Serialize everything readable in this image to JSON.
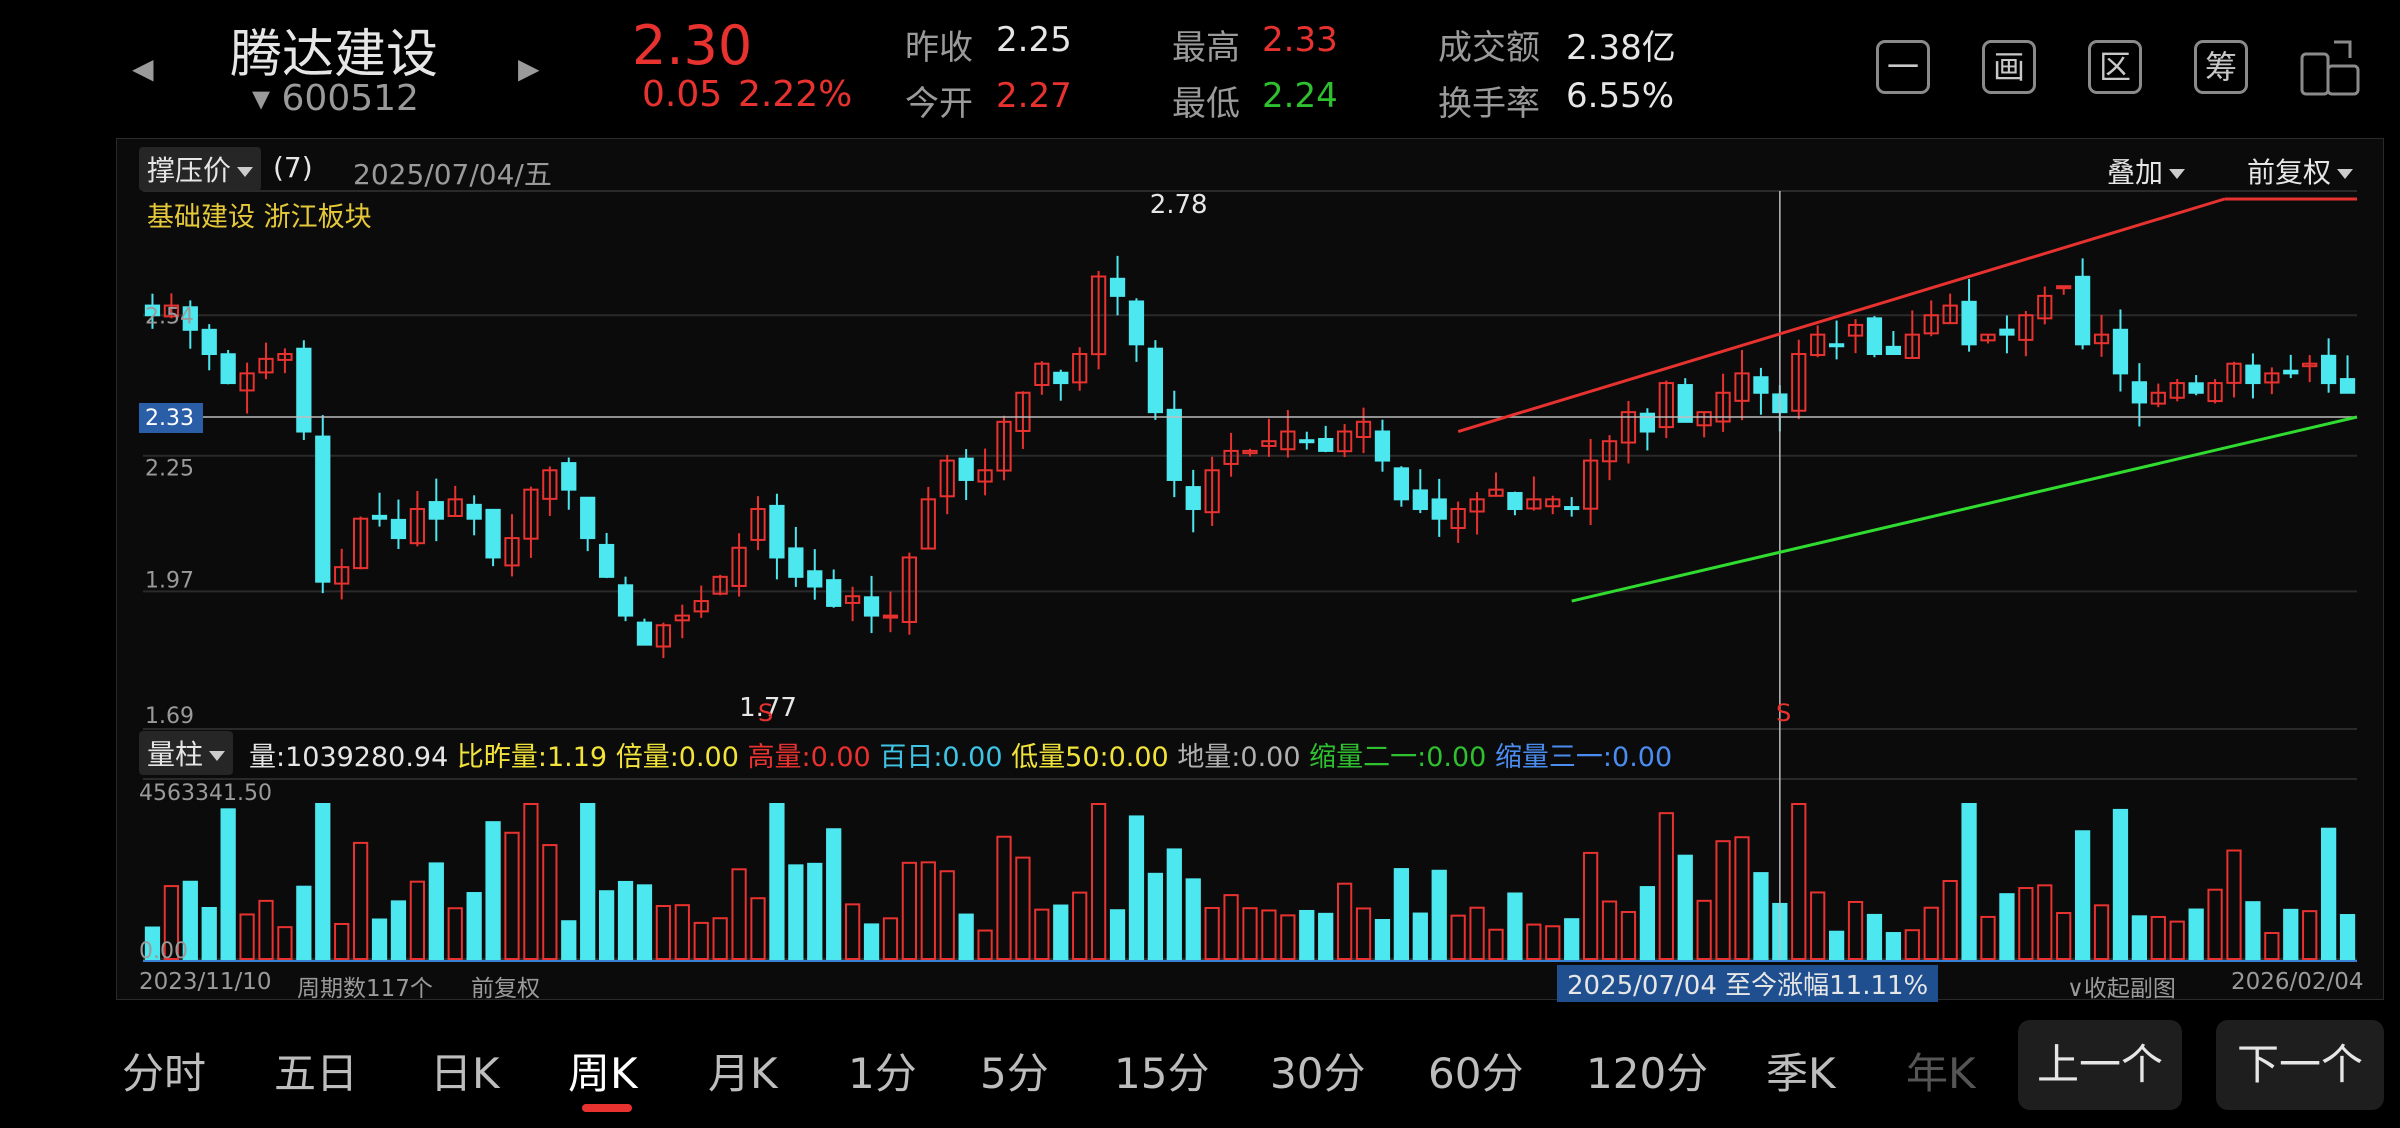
{
  "stock": {
    "name": "腾达建设",
    "code": "600512",
    "price": "2.30",
    "change": "0.05",
    "change_pct": "2.22%",
    "prev_close_label": "昨收",
    "prev_close": "2.25",
    "open_label": "今开",
    "open": "2.27",
    "high_label": "最高",
    "high": "2.33",
    "low_label": "最低",
    "low": "2.24",
    "turnover_amt_label": "成交额",
    "turnover_amt": "2.38亿",
    "turnover_rate_label": "换手率",
    "turnover_rate": "6.55%"
  },
  "tools": [
    {
      "icon": "minus-box-icon",
      "glyph": "一"
    },
    {
      "icon": "draw-icon",
      "glyph": "画"
    },
    {
      "icon": "range-icon",
      "glyph": "区"
    },
    {
      "icon": "chip-icon",
      "glyph": "筹"
    },
    {
      "icon": "rotate-screen-icon",
      "glyph": ""
    }
  ],
  "main_chart": {
    "indicator": "撑压价",
    "indicator_param": "(7)",
    "date": "2025/07/04/五",
    "overlay": "叠加",
    "adjust": "前复权",
    "sector_text": "基础建设 浙江板块",
    "price_labels": {
      "top": "2.54",
      "cursor": "2.33",
      "p225": "2.25",
      "p197": "1.97",
      "p169": "1.69"
    },
    "high_mark": "2.78",
    "low_mark": "1.77",
    "signal": "S",
    "signal2": "S"
  },
  "volume_bar": {
    "selector": "量柱",
    "items": [
      {
        "text": "量:1039280.94",
        "color": "#e6e6e6"
      },
      {
        "text": "比昨量:1.19",
        "color": "#f2e33a"
      },
      {
        "text": "倍量:0.00",
        "color": "#f2e33a"
      },
      {
        "text": "高量:0.00",
        "color": "#e8322f"
      },
      {
        "text": "百日:0.00",
        "color": "#3fc4e6"
      },
      {
        "text": "低量50:0.00",
        "color": "#f2e33a"
      },
      {
        "text": "地量:0.00",
        "color": "#b0b0b0"
      },
      {
        "text": "缩量二一:0.00",
        "color": "#2fc02f"
      },
      {
        "text": "缩量三一:0.00",
        "color": "#4a8cf0"
      }
    ],
    "max_label": "4563341.50",
    "zero_label": "0.00"
  },
  "footer": {
    "start_date": "2023/11/10",
    "period_count": "周期数117个",
    "adjust": "前复权",
    "range_text": "2025/07/04 至今涨幅11.11%",
    "collapse": "收起副图",
    "end_date": "2026/02/04"
  },
  "tabs": [
    "分时",
    "五日",
    "日K",
    "周K",
    "月K",
    "1分",
    "5分",
    "15分",
    "30分",
    "60分",
    "120分",
    "季K",
    "年K"
  ],
  "active_tab": "周K",
  "nav": {
    "prev": "上一个",
    "next": "下一个"
  },
  "colors": {
    "up": "#e8322f",
    "down": "#4de8ef",
    "ma_green": "#2fdc2f",
    "sector": "#e6c93a"
  },
  "chart_data": {
    "type": "candlestick",
    "y_range": [
      1.69,
      2.78
    ],
    "x_range": [
      "2023/11/10",
      "2026/02/04"
    ],
    "candles_close_approx": [
      2.54,
      2.56,
      2.51,
      2.46,
      2.4,
      2.42,
      2.45,
      2.46,
      2.3,
      1.99,
      2.02,
      2.12,
      2.12,
      2.08,
      2.14,
      2.12,
      2.16,
      2.12,
      2.04,
      2.08,
      2.18,
      2.22,
      2.18,
      2.08,
      2.0,
      1.92,
      1.86,
      1.9,
      1.92,
      1.95,
      2.0,
      2.06,
      2.14,
      2.04,
      2.0,
      1.98,
      1.94,
      1.96,
      1.92,
      1.92,
      2.04,
      2.16,
      2.24,
      2.2,
      2.22,
      2.32,
      2.38,
      2.44,
      2.4,
      2.46,
      2.62,
      2.58,
      2.48,
      2.34,
      2.2,
      2.14,
      2.22,
      2.26,
      2.26,
      2.28,
      2.3,
      2.28,
      2.26,
      2.3,
      2.32,
      2.24,
      2.16,
      2.14,
      2.12,
      2.14,
      2.16,
      2.18,
      2.14,
      2.16,
      2.16,
      2.14,
      2.24,
      2.28,
      2.34,
      2.3,
      2.4,
      2.32,
      2.34,
      2.38,
      2.42,
      2.38,
      2.34,
      2.46,
      2.5,
      2.48,
      2.52,
      2.46,
      2.46,
      2.5,
      2.54,
      2.56,
      2.48,
      2.5,
      2.5,
      2.54,
      2.58,
      2.6,
      2.48,
      2.5,
      2.42,
      2.36,
      2.38,
      2.4,
      2.38,
      2.4,
      2.44,
      2.4,
      2.42,
      2.42,
      2.44,
      2.4,
      2.38
    ]
  }
}
